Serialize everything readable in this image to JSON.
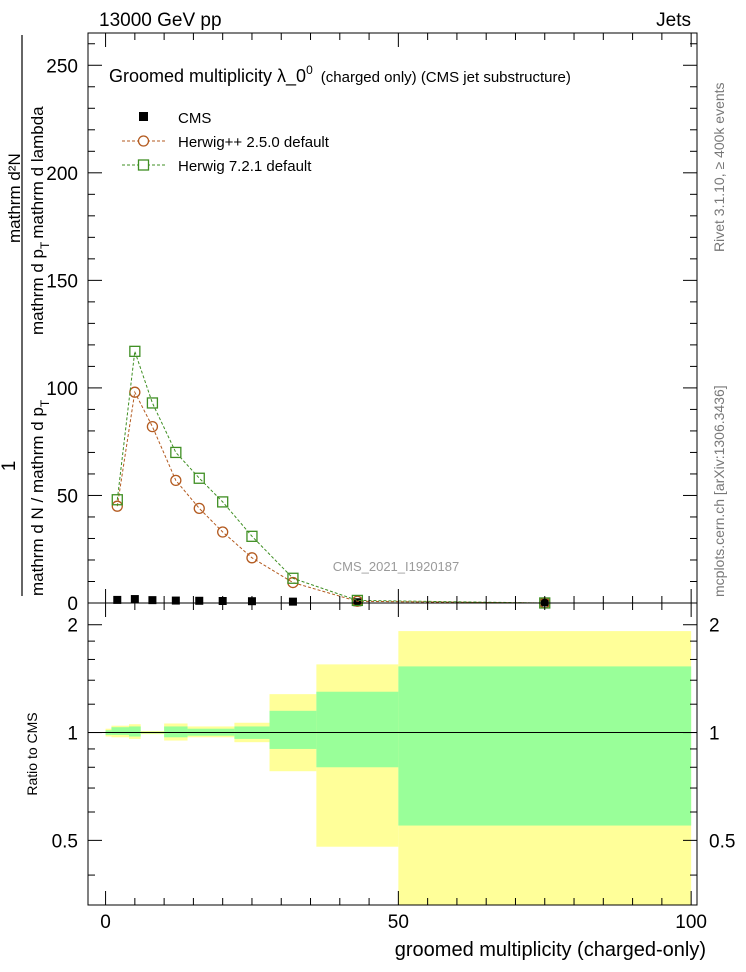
{
  "header": {
    "left": "13000 GeV pp",
    "right": "Jets"
  },
  "side_labels": {
    "rivet": "Rivet 3.1.10, ≥ 400k events",
    "mcplots": "mcplots.cern.ch [arXiv:1306.3436]"
  },
  "watermark": "CMS_2021_I1920187",
  "chart_data": [
    {
      "type": "scatter",
      "title_main": "Groomed multiplicity  λ_0",
      "title_sup": "0",
      "title_tail": "(charged only) (CMS jet substructure)",
      "ylabel_parts": {
        "frac_num": "1",
        "frac_den": "mathrm d N / mathrm d p",
        "frac_den_sub": "T",
        "deriv_num": "mathrm d²N",
        "deriv_den_a": "mathrm d p",
        "deriv_den_sub": "T",
        "deriv_den_b": "mathrm d lambda"
      },
      "xlim": [
        -3,
        101
      ],
      "ylim": [
        0,
        265
      ],
      "yticks": [
        0,
        50,
        100,
        150,
        200,
        250
      ],
      "legend_position": "top-left",
      "series": [
        {
          "name": "CMS",
          "marker": "filled-square",
          "color": "#000000",
          "x": [
            2,
            5,
            8,
            12,
            16,
            20,
            25,
            32,
            43,
            75
          ],
          "y": [
            1.2,
            1.6,
            1.1,
            0.9,
            0.8,
            0.7,
            0.6,
            0.4,
            0.12,
            0.02
          ]
        },
        {
          "name": "Herwig++ 2.5.0 default",
          "marker": "open-circle",
          "color": "#b35a1f",
          "x": [
            2,
            5,
            8,
            12,
            16,
            20,
            25,
            32,
            43,
            75
          ],
          "y": [
            45,
            98,
            82,
            57,
            44,
            33,
            21,
            9.5,
            0.8,
            0.02
          ]
        },
        {
          "name": "Herwig 7.2.1 default",
          "marker": "open-square",
          "color": "#3f8f23",
          "x": [
            2,
            5,
            8,
            12,
            16,
            20,
            25,
            32,
            43,
            75
          ],
          "y": [
            48,
            117,
            93,
            70,
            58,
            47,
            31,
            11.5,
            1.2,
            0.02
          ]
        }
      ]
    },
    {
      "type": "area",
      "ylabel": "Ratio to CMS",
      "xlabel": "groomed multiplicity (charged-only)",
      "xlim": [
        -3,
        101
      ],
      "ylim": [
        0.33,
        2.3
      ],
      "xticks": [
        0,
        50,
        100
      ],
      "yticks": [
        0.5,
        1,
        2
      ],
      "reference_line": 1,
      "bins": [
        {
          "x0": 0,
          "x1": 1,
          "inner": [
            0.985,
            1.015
          ],
          "outer": [
            0.975,
            1.025
          ]
        },
        {
          "x0": 1,
          "x1": 4,
          "inner": [
            0.985,
            1.035
          ],
          "outer": [
            0.97,
            1.045
          ]
        },
        {
          "x0": 4,
          "x1": 6,
          "inner": [
            0.975,
            1.04
          ],
          "outer": [
            0.96,
            1.055
          ]
        },
        {
          "x0": 6,
          "x1": 10,
          "inner": [
            0.995,
            1.005
          ],
          "outer": [
            0.99,
            1.01
          ]
        },
        {
          "x0": 10,
          "x1": 14,
          "inner": [
            0.97,
            1.04
          ],
          "outer": [
            0.95,
            1.06
          ]
        },
        {
          "x0": 14,
          "x1": 22,
          "inner": [
            0.98,
            1.025
          ],
          "outer": [
            0.97,
            1.04
          ]
        },
        {
          "x0": 22,
          "x1": 28,
          "inner": [
            0.96,
            1.04
          ],
          "outer": [
            0.94,
            1.065
          ]
        },
        {
          "x0": 28,
          "x1": 36,
          "inner": [
            0.9,
            1.15
          ],
          "outer": [
            0.78,
            1.28
          ]
        },
        {
          "x0": 36,
          "x1": 50,
          "inner": [
            0.8,
            1.3
          ],
          "outer": [
            0.48,
            1.55
          ]
        },
        {
          "x0": 50,
          "x1": 100,
          "inner": [
            0.55,
            1.53
          ],
          "outer": [
            0.33,
            1.92
          ]
        }
      ]
    }
  ],
  "colors": {
    "band_inner": "#99ff99",
    "band_outer": "#ffff99"
  }
}
